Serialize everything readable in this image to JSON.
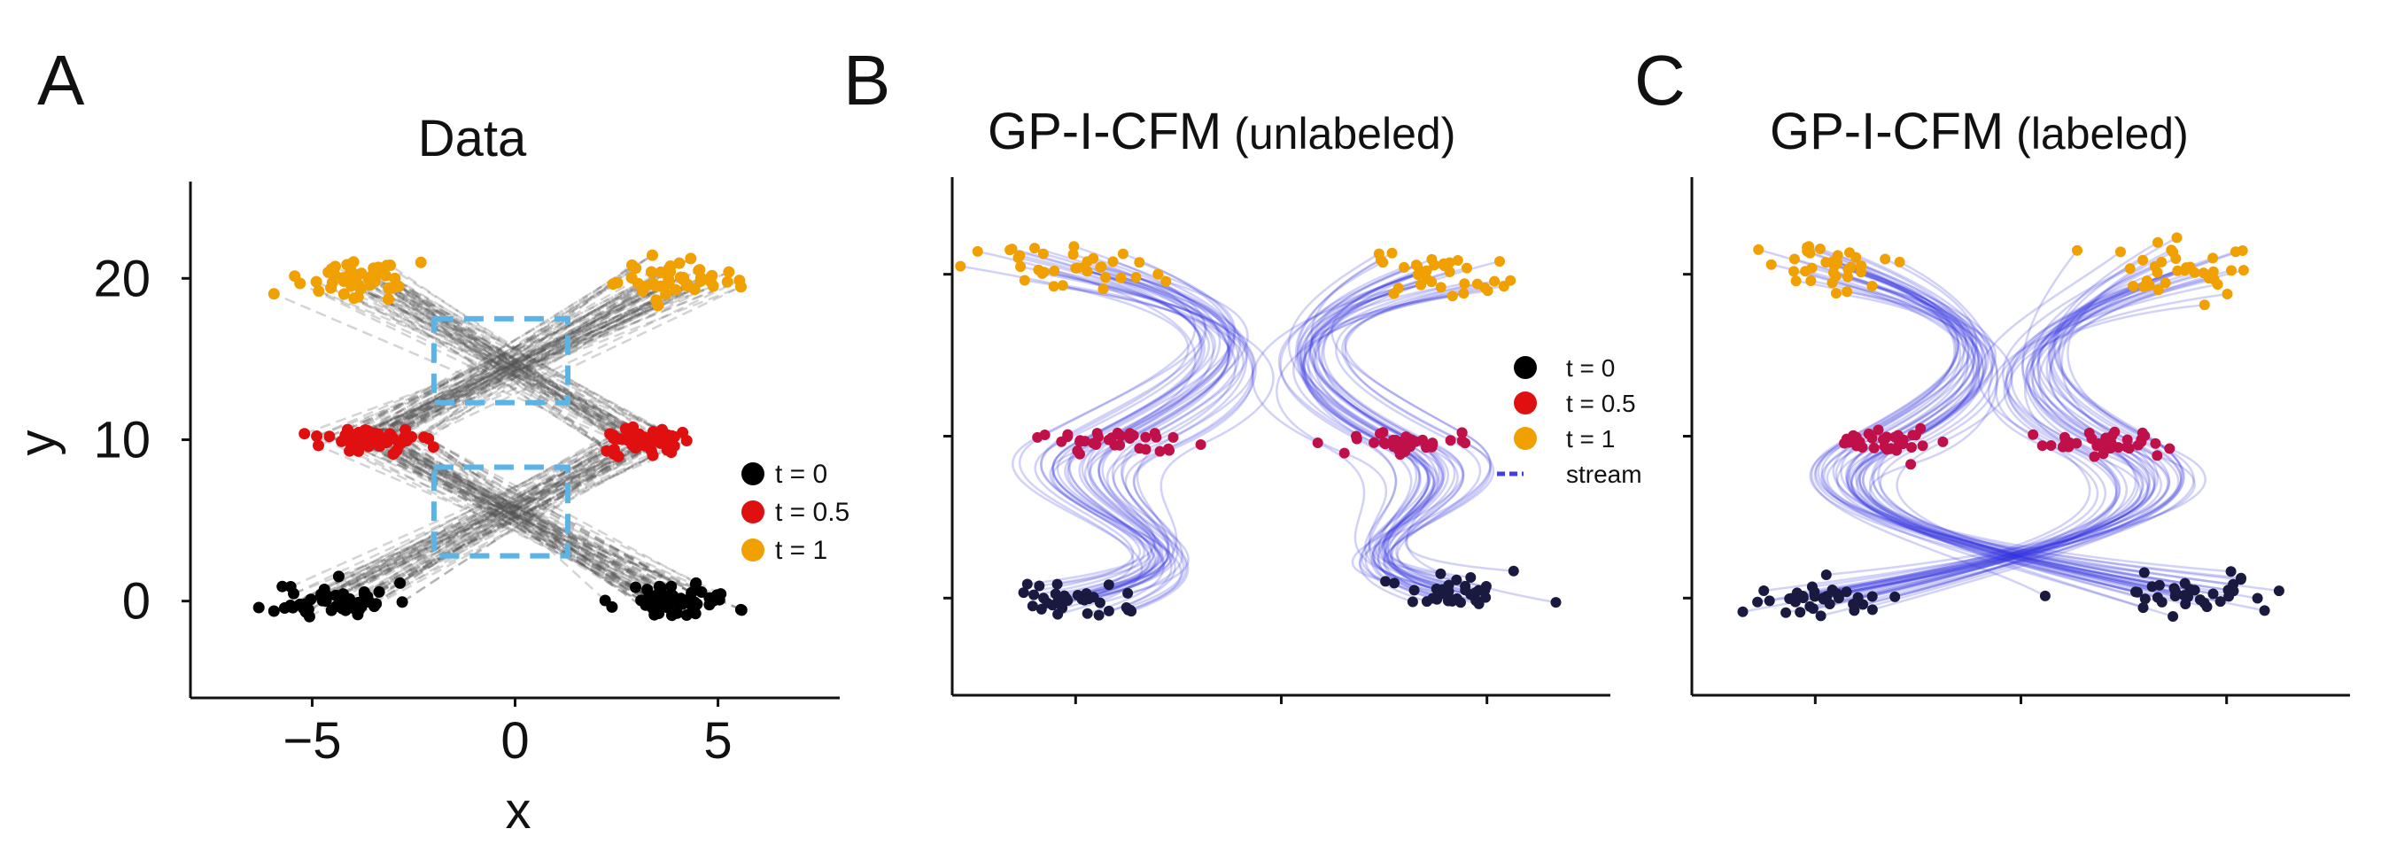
{
  "figure": {
    "panels": [
      {
        "letter": "A",
        "title_main": "Data",
        "title_paren": ""
      },
      {
        "letter": "B",
        "title_main": "GP-I-CFM",
        "title_paren": "(unlabeled)"
      },
      {
        "letter": "C",
        "title_main": "GP-I-CFM",
        "title_paren": "(labeled)"
      }
    ]
  },
  "chart_data": [
    {
      "type": "scatter",
      "panel": "A",
      "title": "Data",
      "xlabel": "x",
      "ylabel": "y",
      "xlim": [
        -8,
        8
      ],
      "ylim": [
        -6,
        26
      ],
      "xticks": [
        -5,
        0,
        5
      ],
      "xtick_labels": [
        "−5",
        "0",
        "5"
      ],
      "yticks": [
        0,
        10,
        20
      ],
      "ytick_labels": [
        "0",
        "10",
        "20"
      ],
      "legend": {
        "position": "right",
        "entries": [
          {
            "label": "t = 0",
            "color": "#000000"
          },
          {
            "label": "t = 0.5",
            "color": "#e01010"
          },
          {
            "label": "t = 1",
            "color": "#f0a000"
          }
        ]
      },
      "series": [
        {
          "name": "t = 0",
          "color": "#000000",
          "clusters": [
            {
              "x_center": -4.5,
              "y_center": 0,
              "x_spread": 1.2,
              "y_spread": 0.8,
              "count": 55
            },
            {
              "x_center": 4.0,
              "y_center": 0,
              "x_spread": 1.2,
              "y_spread": 0.8,
              "count": 55
            }
          ]
        },
        {
          "name": "t = 0.5",
          "color": "#e01010",
          "clusters": [
            {
              "x_center": -3.5,
              "y_center": 10,
              "x_spread": 1.0,
              "y_spread": 0.6,
              "count": 50
            },
            {
              "x_center": 3.2,
              "y_center": 10,
              "x_spread": 1.0,
              "y_spread": 0.6,
              "count": 50
            }
          ]
        },
        {
          "name": "t = 1",
          "color": "#f0a000",
          "clusters": [
            {
              "x_center": -4.0,
              "y_center": 20,
              "x_spread": 1.2,
              "y_spread": 0.8,
              "count": 45
            },
            {
              "x_center": 4.0,
              "y_center": 20,
              "x_spread": 1.2,
              "y_spread": 0.8,
              "count": 45
            }
          ]
        }
      ],
      "annotations": [
        {
          "type": "dashed-box",
          "color": "#5ab4e6",
          "x_range": [
            -2,
            1.3
          ],
          "y_range": [
            12.3,
            17.5
          ]
        },
        {
          "type": "dashed-box",
          "color": "#5ab4e6",
          "x_range": [
            -2,
            1.3
          ],
          "y_range": [
            2.8,
            8.3
          ]
        }
      ]
    },
    {
      "type": "scatter",
      "panel": "B",
      "title": "GP-I-CFM (unlabeled)",
      "xlim": [
        -8,
        8
      ],
      "ylim": [
        -6,
        26
      ],
      "xticks": [
        -5,
        0,
        5
      ],
      "yticks": [
        0,
        10,
        20
      ],
      "tick_labels_shown": false,
      "legend": {
        "position": "right",
        "entries": [
          {
            "label": "t = 0",
            "color": "#000000"
          },
          {
            "label": "t = 0.5",
            "color": "#e01010"
          },
          {
            "label": "t = 1",
            "color": "#f0a000"
          },
          {
            "label": "stream",
            "color": "#4040e0"
          }
        ]
      },
      "series": [
        {
          "name": "t = 0",
          "color": "#1a1a40"
        },
        {
          "name": "t = 0.5",
          "color": "#c0104a"
        },
        {
          "name": "t = 1",
          "color": "#f0a000"
        },
        {
          "name": "stream",
          "color": "#3030e0",
          "pattern": "trajectories stay on same side (left-left, right-right)"
        }
      ]
    },
    {
      "type": "scatter",
      "panel": "C",
      "title": "GP-I-CFM (labeled)",
      "xlim": [
        -8,
        8
      ],
      "ylim": [
        -6,
        26
      ],
      "xticks": [
        -5,
        0,
        5
      ],
      "yticks": [
        0,
        10,
        20
      ],
      "tick_labels_shown": false,
      "series": [
        {
          "name": "t = 0",
          "color": "#1a1a40"
        },
        {
          "name": "t = 0.5",
          "color": "#c0104a"
        },
        {
          "name": "t = 1",
          "color": "#f0a000"
        },
        {
          "name": "stream",
          "color": "#3030e0",
          "pattern": "trajectories cross sides (left-right, right-left)"
        }
      ]
    }
  ]
}
